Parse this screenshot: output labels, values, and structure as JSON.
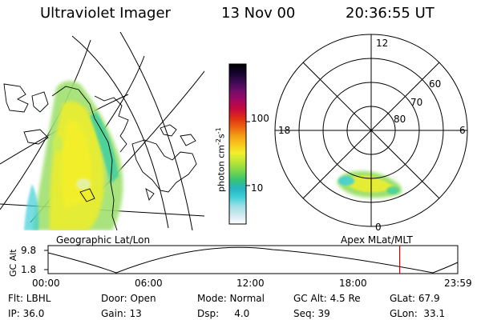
{
  "header": {
    "instrument": "Ultraviolet Imager",
    "date": "13 Nov 00",
    "time": "20:36:55 UT"
  },
  "colorbar": {
    "unit_main": "photon cm",
    "unit_sup1": "-2",
    "unit_s": "s",
    "unit_sup2": "-1",
    "ticks": [
      {
        "label": "100",
        "value": 100
      },
      {
        "label": "10",
        "value": 10
      }
    ],
    "stops": [
      "#ffffff",
      "#cfe9ef",
      "#9fdfe6",
      "#3fd0d8",
      "#25b5c2",
      "#3ac46f",
      "#7dd84a",
      "#bde435",
      "#f2ef2a",
      "#f8c51b",
      "#f39a14",
      "#ec5c10",
      "#dd2a17",
      "#c4083f",
      "#9f0860",
      "#6e0d6b",
      "#3b0a52",
      "#14042d",
      "#000000"
    ]
  },
  "geo_map": {
    "label": "Geographic Lat/Lon"
  },
  "polar_plot": {
    "label": "Apex MLat/MLT",
    "mlt_labels": [
      {
        "label": "12"
      },
      {
        "label": "18"
      },
      {
        "label": "6"
      },
      {
        "label": "0"
      }
    ],
    "lat_labels": [
      {
        "label": "60"
      },
      {
        "label": "70"
      },
      {
        "label": "80"
      }
    ]
  },
  "gc_alt_panel": {
    "ylabel": "GC Alt",
    "y_ticks": [
      "9.8",
      "1.8"
    ],
    "x_ticks": [
      "00:00",
      "06:00",
      "12:00",
      "18:00",
      "23:59"
    ],
    "current_time_marker_color": "#cc0000",
    "current_time_hours": 20.6
  },
  "footer": {
    "flt": "Flt: LBHL",
    "ip": "IP: 36.0",
    "door": "Door: Open",
    "gain": "Gain: 13",
    "mode": "Mode: Normal",
    "dsp": "Dsp:     4.0",
    "gcalt": "GC Alt: 4.5 Re",
    "seq": "Seq: 39",
    "glat": "GLat: 67.9",
    "glon": "GLon:  33.1"
  }
}
